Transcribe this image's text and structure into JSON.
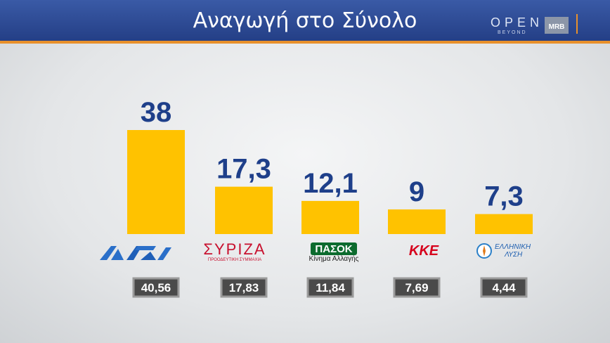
{
  "header": {
    "title": "Αναγωγή στο Σύνολο",
    "open_logo": "OPEN",
    "open_sub": "BEYOND",
    "mrb_logo": "MRB"
  },
  "colors": {
    "bar": "#ffc200",
    "value_label": "#1e3f8a",
    "box_fill": "#4a4a4a",
    "box_border": "#9a9a9a",
    "header": "#2b4791",
    "accent": "#e8902b"
  },
  "chart_data": {
    "type": "bar",
    "categories": [
      "ΝΔ",
      "ΣΥΡΙΖΑ",
      "ΠΑΣΟΚ",
      "ΚΚΕ",
      "ΕΛΛΗΝΙΚΗ ΛΥΣΗ"
    ],
    "values": [
      38,
      17.3,
      12.1,
      9,
      7.3
    ],
    "value_labels": [
      "38",
      "17,3",
      "12,1",
      "9",
      "7,3"
    ],
    "secondary_values": [
      40.56,
      17.83,
      11.84,
      7.69,
      4.44
    ],
    "secondary_labels": [
      "40,56",
      "17,83",
      "11,84",
      "7,69",
      "4,44"
    ],
    "title": "Αναγωγή στο Σύνολο",
    "ylim": [
      0,
      40
    ]
  },
  "logos": {
    "syriza_main": "ΣΥΡΙΖΑ",
    "syriza_sub": "ΠΡΟΟΔΕΥΤΙΚΗ ΣΥΜΜΑΧΙΑ",
    "pasok_main": "ΠΑΣΟΚ",
    "pasok_sub": "Κίνημα Αλλαγής",
    "kke_main": "ΚΚΕ",
    "el_line1": "ΕΛΛΗΝΙΚΗ",
    "el_line2": "ΛΥΣΗ"
  }
}
